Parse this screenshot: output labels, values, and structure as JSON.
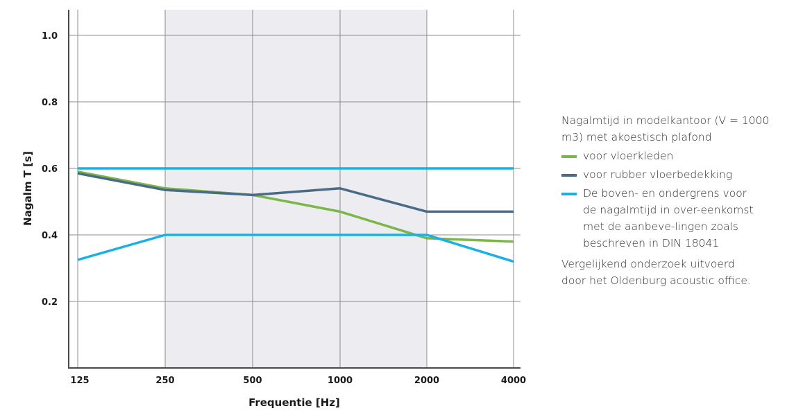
{
  "chart_data": {
    "type": "line",
    "x": [
      "125",
      "250",
      "500",
      "1000",
      "2000",
      "4000"
    ],
    "xlabel": "Frequentie [Hz]",
    "ylabel": "Nagalm T [s]",
    "ylim": [
      0.0,
      1.1
    ],
    "yticks": [
      "0.2",
      "0.4",
      "0.6",
      "0.8",
      "1.0"
    ],
    "ytick_values": [
      0.2,
      0.4,
      0.6,
      0.8,
      1.0
    ],
    "grid": true,
    "shaded_band": [
      "250",
      "2000"
    ],
    "series": [
      {
        "name": "voor vloerkleden",
        "color": "#7ab648",
        "values": [
          0.59,
          0.54,
          0.52,
          0.47,
          0.39,
          0.38
        ]
      },
      {
        "name": "voor rubber vloerbedekking",
        "color": "#4a6b87",
        "values": [
          0.585,
          0.535,
          0.52,
          0.54,
          0.47,
          0.47
        ]
      },
      {
        "name": "De boven- en ondergrens",
        "color": "#1ab0e6",
        "values": [
          0.6,
          0.6,
          0.6,
          0.6,
          0.6,
          0.6
        ]
      },
      {
        "name": "De boven- en ondergrens",
        "color": "#1ab0e6",
        "values": [
          0.325,
          0.4,
          0.4,
          0.4,
          0.4,
          0.32
        ]
      }
    ]
  },
  "legend": {
    "heading": "Nagalmtijd in modelkantoor (V = 1000 m3) met akoestisch plafond",
    "items": [
      {
        "label": "voor vloerkleden",
        "color": "#7ab648"
      },
      {
        "label": "voor rubber vloerbedekking",
        "color": "#4a6b87"
      },
      {
        "label": "De boven- en ondergrens voor de nagalmtijd in over-eenkomst met de aanbeve-lingen zoals beschreven in DIN 18041",
        "color": "#1ab0e6"
      }
    ],
    "note": "Vergelijkend onderzoek uitvoerd door het Oldenburg acoustic office."
  },
  "colors": {
    "band": "#ededf1",
    "grid": "#8c8c8c",
    "axis": "#4a4a4a"
  }
}
